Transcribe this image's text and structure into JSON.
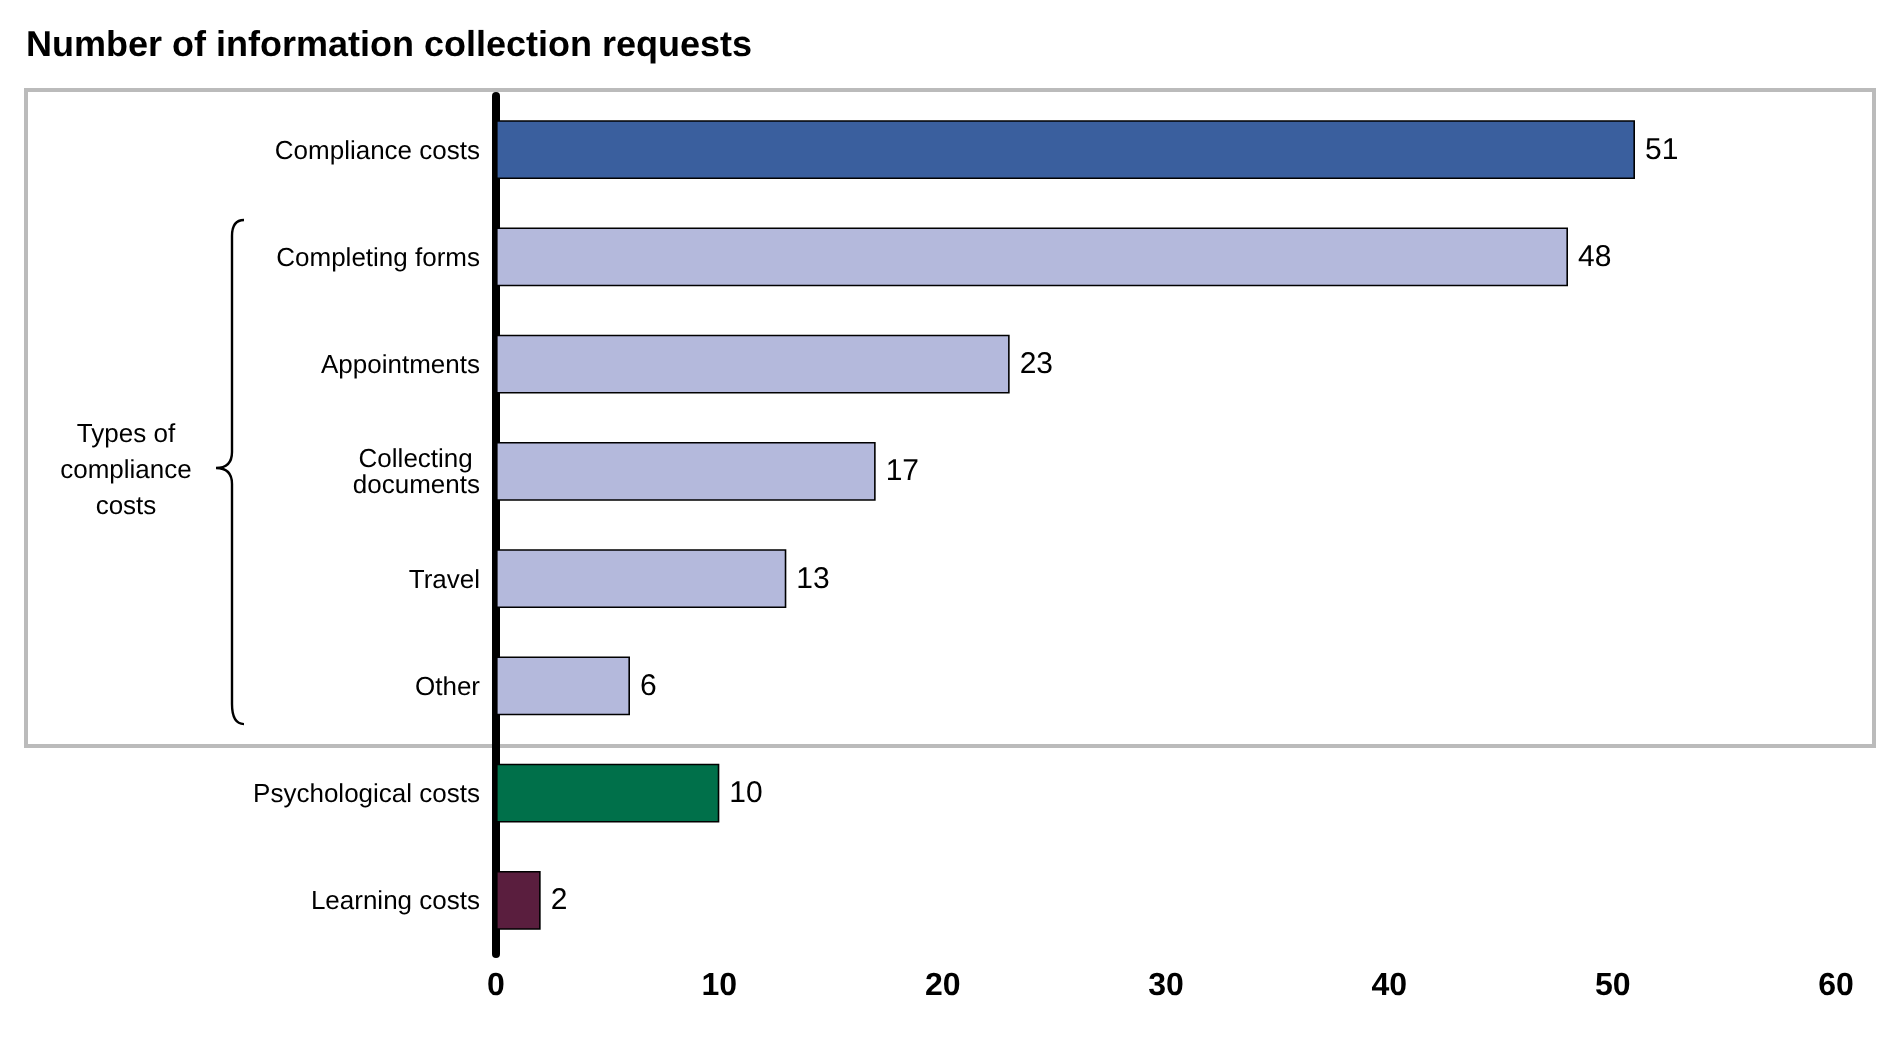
{
  "chart_data": {
    "type": "bar",
    "orientation": "horizontal",
    "title": "Number of information collection requests",
    "categories": [
      "Compliance costs",
      "Completing forms",
      "Appointments",
      "Collecting documents",
      "Travel",
      "Other",
      "Psychological costs",
      "Learning costs"
    ],
    "values": [
      51,
      48,
      23,
      17,
      13,
      6,
      10,
      2
    ],
    "colors": [
      "#3a5f9e",
      "#b4b9dc",
      "#b4b9dc",
      "#b4b9dc",
      "#b4b9dc",
      "#b4b9dc",
      "#00704a",
      "#5a1e3e"
    ],
    "xlim": [
      0,
      60
    ],
    "xticks": [
      0,
      10,
      20,
      30,
      40,
      50,
      60
    ],
    "data_labels": true,
    "annotations": [
      "Types of compliance costs"
    ]
  }
}
